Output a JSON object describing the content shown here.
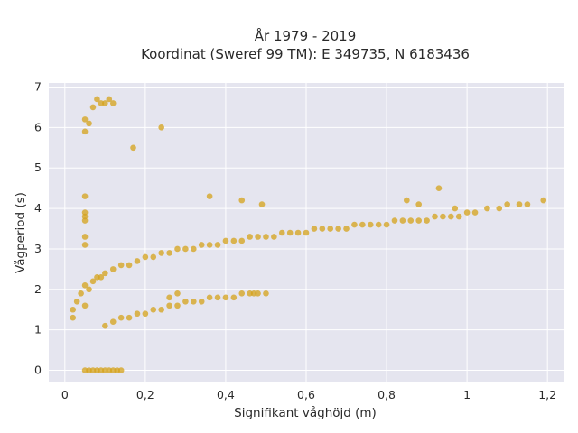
{
  "chart_data": {
    "type": "scatter",
    "title_line1": "År 1979 - 2019",
    "title_line2": "Koordinat (Sweref 99 TM): E 349735, N 6183436",
    "xlabel": "Signifikant våghöjd (m)",
    "ylabel": "Vågperiod (s)",
    "xlim": [
      -0.04,
      1.24
    ],
    "ylim": [
      -0.3,
      7.1
    ],
    "x_ticks": [
      0,
      0.2,
      0.4,
      0.6,
      0.8,
      1,
      1.2
    ],
    "x_tick_labels": [
      "0",
      "0,2",
      "0,4",
      "0,6",
      "0,8",
      "1",
      "1,2"
    ],
    "y_ticks": [
      0,
      1,
      2,
      3,
      4,
      5,
      6,
      7
    ],
    "y_tick_labels": [
      "0",
      "1",
      "2",
      "3",
      "4",
      "5",
      "6",
      "7"
    ],
    "grid": true,
    "legend": "none",
    "colors": {
      "plot_bg": "#e5e5ef",
      "marker": "#d4a21a",
      "grid": "#ffffff"
    },
    "series": [
      {
        "x": [
          0.02,
          0.02,
          0.03,
          0.04,
          0.05,
          0.05,
          0.06,
          0.07,
          0.08,
          0.09,
          0.1,
          0.12,
          0.14,
          0.16,
          0.18,
          0.2,
          0.22,
          0.24,
          0.26,
          0.28,
          0.3,
          0.32,
          0.34,
          0.36,
          0.38,
          0.4,
          0.42,
          0.44,
          0.46,
          0.48,
          0.5,
          0.52,
          0.54,
          0.56,
          0.58,
          0.6,
          0.62,
          0.64,
          0.66,
          0.68,
          0.7,
          0.72,
          0.74,
          0.76,
          0.78,
          0.8,
          0.82,
          0.84,
          0.86,
          0.88,
          0.9,
          0.92,
          0.94,
          0.96,
          0.98,
          1.0,
          1.02,
          1.05,
          1.08,
          1.1,
          1.13,
          1.15,
          1.19,
          0.05,
          0.06,
          0.07,
          0.08,
          0.09,
          0.1,
          0.11,
          0.12,
          0.13,
          0.14,
          0.1,
          0.12,
          0.14,
          0.16,
          0.18,
          0.2,
          0.22,
          0.24,
          0.26,
          0.28,
          0.3,
          0.32,
          0.34,
          0.36,
          0.38,
          0.4,
          0.42,
          0.44,
          0.46,
          0.48,
          0.5,
          0.07,
          0.08,
          0.09,
          0.1,
          0.11,
          0.12,
          0.05,
          0.05,
          0.06,
          0.17,
          0.24,
          0.05,
          0.05,
          0.05,
          0.05,
          0.05,
          0.05,
          0.85,
          0.93,
          0.88,
          0.97,
          0.44,
          0.36,
          0.49,
          0.26,
          0.28,
          0.47
        ],
        "y": [
          1.3,
          1.5,
          1.7,
          1.9,
          1.6,
          2.1,
          2.0,
          2.2,
          2.3,
          2.3,
          2.4,
          2.5,
          2.6,
          2.6,
          2.7,
          2.8,
          2.8,
          2.9,
          2.9,
          3.0,
          3.0,
          3.0,
          3.1,
          3.1,
          3.1,
          3.2,
          3.2,
          3.2,
          3.3,
          3.3,
          3.3,
          3.3,
          3.4,
          3.4,
          3.4,
          3.4,
          3.5,
          3.5,
          3.5,
          3.5,
          3.5,
          3.6,
          3.6,
          3.6,
          3.6,
          3.6,
          3.7,
          3.7,
          3.7,
          3.7,
          3.7,
          3.8,
          3.8,
          3.8,
          3.8,
          3.9,
          3.9,
          4.0,
          4.0,
          4.1,
          4.1,
          4.1,
          4.2,
          0.0,
          0.0,
          0.0,
          0.0,
          0.0,
          0.0,
          0.0,
          0.0,
          0.0,
          0.0,
          1.1,
          1.2,
          1.3,
          1.3,
          1.4,
          1.4,
          1.5,
          1.5,
          1.6,
          1.6,
          1.7,
          1.7,
          1.7,
          1.8,
          1.8,
          1.8,
          1.8,
          1.9,
          1.9,
          1.9,
          1.9,
          6.5,
          6.7,
          6.6,
          6.6,
          6.7,
          6.6,
          6.2,
          5.9,
          6.1,
          5.5,
          6.0,
          4.3,
          3.9,
          3.8,
          3.7,
          3.3,
          3.1,
          4.2,
          4.5,
          4.1,
          4.0,
          4.2,
          4.3,
          4.1,
          1.8,
          1.9,
          1.9
        ]
      }
    ]
  }
}
